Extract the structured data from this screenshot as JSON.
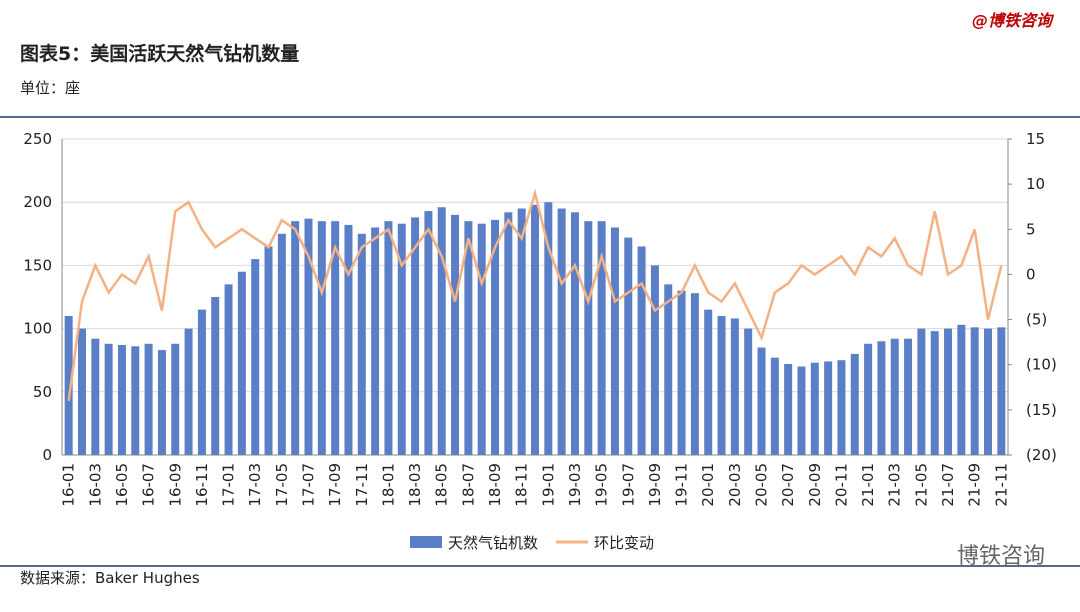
{
  "header": {
    "brand": "@博铁咨询",
    "title": "图表5：美国活跃天然气钻机数量",
    "unit": "单位：座"
  },
  "footer": {
    "source": "数据来源：Baker Hughes",
    "logo": "博铁咨询"
  },
  "chart_data": {
    "type": "bar-line",
    "categories": [
      "16-01",
      null,
      "16-03",
      null,
      "16-05",
      null,
      "16-07",
      null,
      "16-09",
      null,
      "16-11",
      null,
      "17-01",
      null,
      "17-03",
      null,
      "17-05",
      null,
      "17-07",
      null,
      "17-09",
      null,
      "17-11",
      null,
      "18-01",
      null,
      "18-03",
      null,
      "18-05",
      null,
      "18-07",
      null,
      "18-09",
      null,
      "18-11",
      null,
      "19-01",
      null,
      "19-03",
      null,
      "19-05",
      null,
      "19-07",
      null,
      "19-09",
      null,
      "19-11",
      null,
      "20-01",
      null,
      "20-03",
      null,
      "20-05",
      null,
      "20-07",
      null,
      "20-09",
      null,
      "20-11",
      null,
      "21-01",
      null,
      "21-03",
      null,
      "21-05",
      null,
      "21-07",
      null,
      "21-09",
      null,
      "21-11"
    ],
    "series": [
      {
        "name": "天然气钻机数",
        "color": "#5b7fc7",
        "kind": "bar",
        "values": [
          110,
          100,
          92,
          88,
          87,
          86,
          88,
          83,
          88,
          100,
          115,
          125,
          135,
          145,
          155,
          165,
          175,
          185,
          187,
          185,
          185,
          182,
          175,
          180,
          185,
          183,
          188,
          193,
          196,
          190,
          185,
          183,
          186,
          192,
          195,
          198,
          200,
          195,
          192,
          185,
          185,
          180,
          172,
          165,
          150,
          135,
          130,
          128,
          115,
          110,
          108,
          100,
          85,
          77,
          72,
          70,
          73,
          74,
          75,
          80,
          88,
          90,
          92,
          92,
          100,
          98,
          100,
          103,
          101,
          100,
          101
        ]
      },
      {
        "name": "环比变动",
        "color": "#f4b183",
        "kind": "line",
        "axis": "y2",
        "values": [
          -14,
          -3,
          1,
          -2,
          0,
          -1,
          2,
          -4,
          7,
          8,
          5,
          3,
          4,
          5,
          4,
          3,
          6,
          5,
          2,
          -2,
          3,
          0,
          3,
          4,
          5,
          1,
          3,
          5,
          2,
          -3,
          4,
          -1,
          3,
          6,
          4,
          9,
          3,
          -1,
          1,
          -3,
          2,
          -3,
          -2,
          -1,
          -4,
          -3,
          -2,
          1,
          -2,
          -3,
          -1,
          -4,
          -7,
          -2,
          -1,
          1,
          0,
          1,
          2,
          0,
          3,
          2,
          4,
          1,
          0,
          7,
          0,
          1,
          5,
          -5,
          1
        ]
      }
    ],
    "ylim": [
      0,
      250
    ],
    "yticks": [
      0,
      50,
      100,
      150,
      200,
      250
    ],
    "y2lim": [
      -20,
      15
    ],
    "y2ticks": [
      {
        "value": -20,
        "label": "(20)"
      },
      {
        "value": -15,
        "label": "(15)"
      },
      {
        "value": -10,
        "label": "(10)"
      },
      {
        "value": -5,
        "label": "(5)"
      },
      0,
      5,
      10,
      15
    ],
    "grid": true
  }
}
